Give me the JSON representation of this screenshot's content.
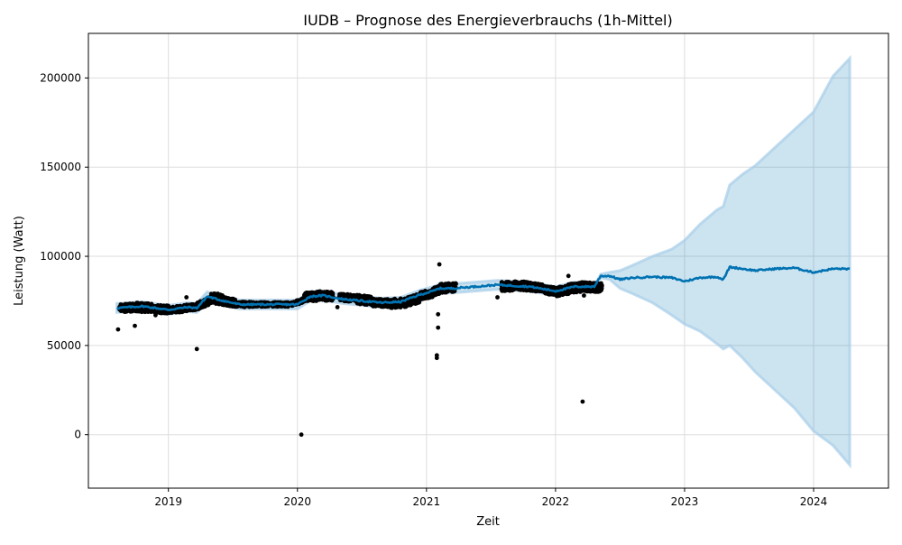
{
  "chart_data": {
    "type": "line",
    "title": "IUDB – Prognose des Energieverbrauchs (1h-Mittel)",
    "xlabel": "Zeit",
    "ylabel": "Leistung (Watt)",
    "xlim": [
      2018.38,
      2024.58
    ],
    "ylim": [
      -30000,
      225000
    ],
    "x_ticks": [
      2019,
      2020,
      2021,
      2022,
      2023,
      2024
    ],
    "x_tick_labels": [
      "2019",
      "2020",
      "2021",
      "2022",
      "2023",
      "2024"
    ],
    "y_ticks": [
      0,
      50000,
      100000,
      150000,
      200000
    ],
    "y_tick_labels": [
      "0",
      "50000",
      "100000",
      "150000",
      "200000"
    ],
    "grid": true,
    "colors": {
      "observed": "#000000",
      "forecast": "#0072B2",
      "interval": "#0072B2"
    },
    "series": [
      {
        "kind": "observed_clusters",
        "x": [
          2018.62,
          2018.75,
          2018.88,
          2019.0,
          2019.12,
          2019.22,
          2019.32,
          2019.42,
          2019.52,
          2019.65,
          2019.8,
          2019.95,
          2020.05,
          2020.15,
          2020.32,
          2020.45,
          2020.58,
          2020.72,
          2020.85,
          2020.95,
          2021.05,
          2021.1,
          2021.58,
          2021.68,
          2021.8,
          2021.92,
          2022.0,
          2022.1,
          2022.2,
          2022.28
        ],
        "y": [
          71000,
          71500,
          70500,
          70000,
          71000,
          72000,
          77000,
          75000,
          73000,
          73000,
          73000,
          73000,
          77000,
          78000,
          77000,
          76000,
          74000,
          73500,
          74500,
          78000,
          80000,
          82000,
          83000,
          83500,
          83000,
          81000,
          80000,
          82000,
          83000,
          82500
        ],
        "spread": [
          2200,
          2500,
          2200,
          1800,
          1800,
          2000,
          3000,
          2200,
          1500,
          1200,
          1200,
          1200,
          2500,
          2500,
          2000,
          2500,
          2200,
          2500,
          2500,
          2200,
          2200,
          2500,
          2500,
          2500,
          2200,
          2200,
          2500,
          2500,
          2500,
          2500
        ]
      },
      {
        "kind": "observed_outliers",
        "x": [
          2018.61,
          2018.74,
          2018.9,
          2019.14,
          2019.22,
          2020.03,
          2020.31,
          2021.08,
          2021.08,
          2021.09,
          2021.09,
          2021.1,
          2021.55,
          2022.1,
          2022.21,
          2022.22
        ],
        "y": [
          59000,
          61000,
          67000,
          77000,
          48000,
          0,
          71500,
          43000,
          44500,
          67500,
          60000,
          95500,
          77000,
          89000,
          18500,
          78000
        ]
      },
      {
        "name": "",
        "kind": "forecast_mean",
        "x": [
          2018.6,
          2018.8,
          2019.0,
          2019.15,
          2019.22,
          2019.3,
          2019.4,
          2019.55,
          2019.8,
          2020.0,
          2020.1,
          2020.2,
          2020.35,
          2020.5,
          2020.65,
          2020.8,
          2020.95,
          2021.05,
          2021.1,
          2021.2,
          2021.55,
          2021.8,
          2022.0,
          2022.15,
          2022.3,
          2022.35,
          2022.42,
          2022.5,
          2022.6,
          2022.75,
          2022.9,
          2023.0,
          2023.12,
          2023.25,
          2023.3,
          2023.35,
          2023.45,
          2023.55,
          2023.7,
          2023.85,
          2024.0,
          2024.15,
          2024.28
        ],
        "y": [
          71000,
          72000,
          70000,
          71500,
          71000,
          77500,
          75500,
          73000,
          73000,
          73000,
          77500,
          78000,
          76000,
          75000,
          74000,
          74500,
          78500,
          80500,
          82000,
          82000,
          84000,
          83000,
          80500,
          83000,
          83000,
          89000,
          89000,
          87000,
          88000,
          88500,
          88000,
          86000,
          88000,
          88500,
          87000,
          94000,
          93000,
          92000,
          93000,
          93500,
          91000,
          93000,
          93000
        ]
      },
      {
        "name": "",
        "kind": "forecast_upper",
        "x": [
          2022.3,
          2022.35,
          2022.42,
          2022.5,
          2022.6,
          2022.75,
          2022.9,
          2023.0,
          2023.12,
          2023.25,
          2023.3,
          2023.35,
          2023.45,
          2023.55,
          2023.7,
          2023.85,
          2024.0,
          2024.15,
          2024.28
        ],
        "y": [
          83000,
          90000,
          91000,
          92000,
          95000,
          100000,
          104000,
          109000,
          118000,
          126000,
          128000,
          140000,
          146000,
          151000,
          161000,
          171000,
          181000,
          201000,
          211000
        ]
      },
      {
        "name": "",
        "kind": "forecast_lower",
        "x": [
          2022.3,
          2022.35,
          2022.42,
          2022.5,
          2022.6,
          2022.75,
          2022.9,
          2023.0,
          2023.12,
          2023.25,
          2023.3,
          2023.35,
          2023.45,
          2023.55,
          2023.7,
          2023.85,
          2024.0,
          2024.15,
          2024.28
        ],
        "y": [
          83000,
          88000,
          87000,
          82000,
          79000,
          74000,
          67000,
          62000,
          58000,
          51000,
          48000,
          50000,
          43000,
          35000,
          25000,
          15000,
          2000,
          -6000,
          -17000
        ]
      }
    ]
  }
}
